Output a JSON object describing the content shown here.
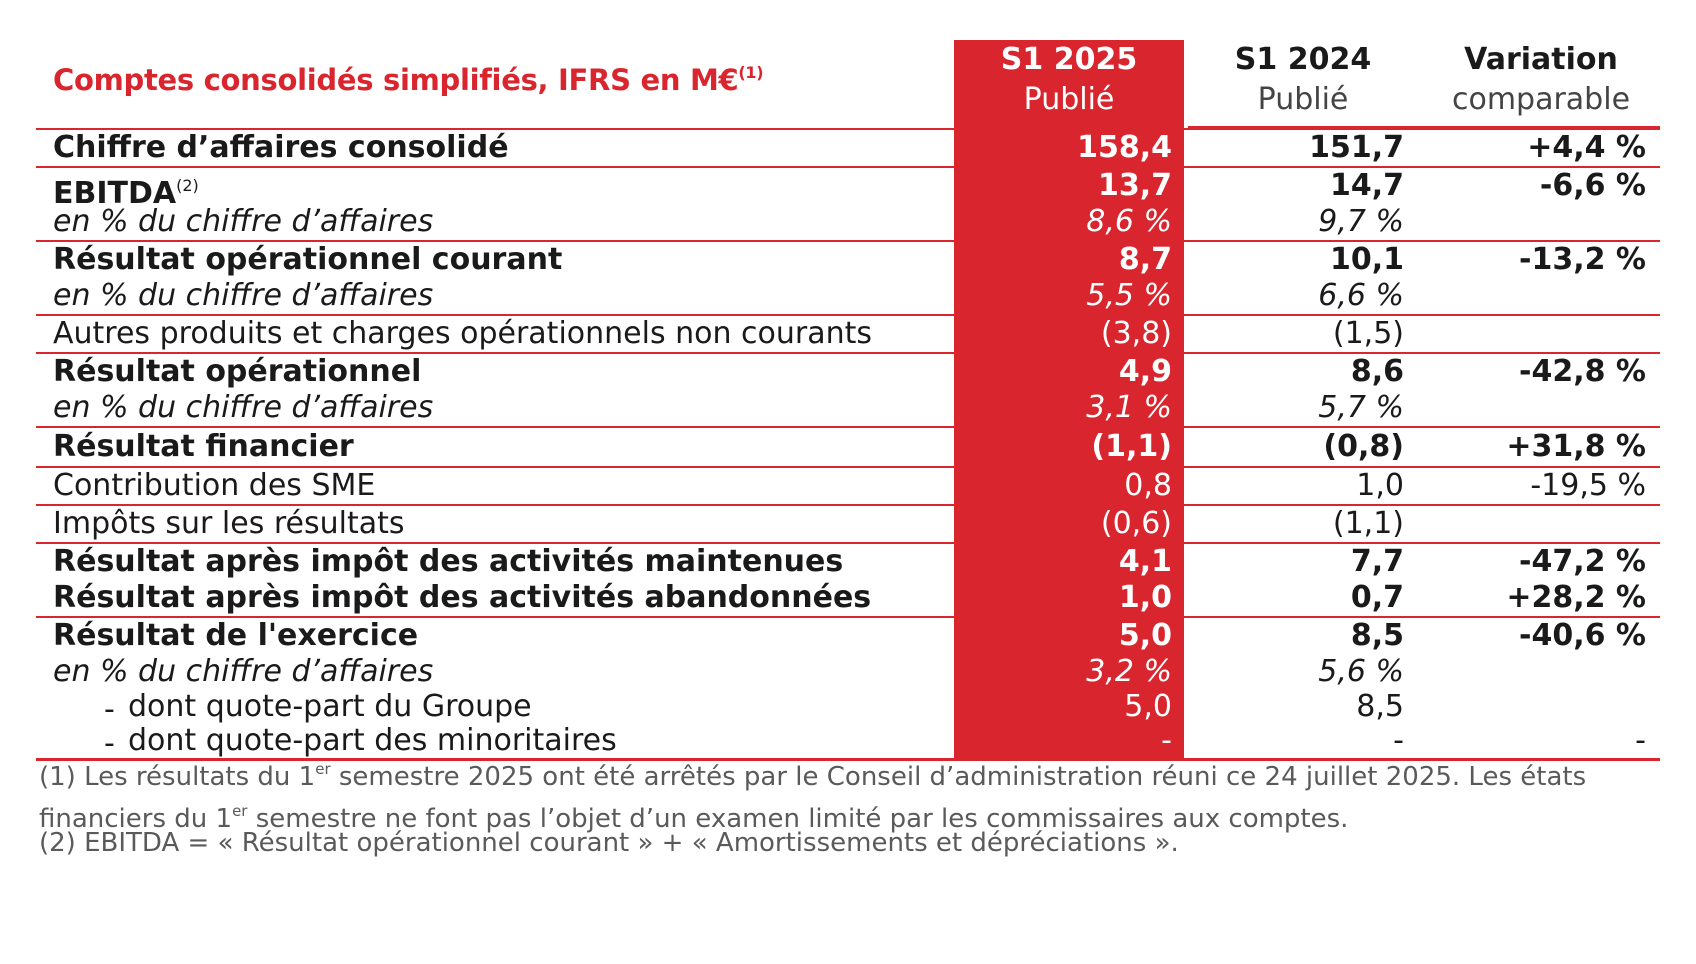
{
  "header": {
    "title": "Comptes consolidés simplifiés, IFRS en M€",
    "title_note": "(1)",
    "col1_line1": "S1 2025",
    "col1_line2": "Publié",
    "col2_line1": "S1 2024",
    "col2_line2": "Publié",
    "col3_line1": "Variation",
    "col3_line2": "comparable"
  },
  "rows": [
    {
      "label": "Chiffre d’affaires consolidé",
      "v1": "158,4",
      "v2": "151,7",
      "v3": "+4,4 %"
    },
    {
      "label": "EBITDA",
      "note": "(2)",
      "v1": "13,7",
      "v2": "14,7",
      "v3": "-6,6 %"
    },
    {
      "label": "en % du chiffre d’affaires",
      "v1": "8,6 %",
      "v2": "9,7 %",
      "v3": ""
    },
    {
      "label": "Résultat opérationnel courant",
      "v1": "8,7",
      "v2": "10,1",
      "v3": "-13,2 %"
    },
    {
      "label": "en % du chiffre d’affaires",
      "v1": "5,5 %",
      "v2": "6,6 %",
      "v3": ""
    },
    {
      "label": "Autres produits et charges opérationnels non courants",
      "v1": "(3,8)",
      "v2": "(1,5)",
      "v3": ""
    },
    {
      "label": "Résultat opérationnel",
      "v1": "4,9",
      "v2": "8,6",
      "v3": "-42,8 %"
    },
    {
      "label": "en % du chiffre d’affaires",
      "v1": "3,1 %",
      "v2": "5,7 %",
      "v3": ""
    },
    {
      "label": "Résultat financier",
      "v1": "(1,1)",
      "v2": "(0,8)",
      "v3": "+31,8 %"
    },
    {
      "label": "Contribution des SME",
      "v1": "0,8",
      "v2": "1,0",
      "v3": "-19,5 %"
    },
    {
      "label": "Impôts sur les résultats",
      "v1": "(0,6)",
      "v2": "(1,1)",
      "v3": ""
    },
    {
      "label": "Résultat après impôt des activités maintenues",
      "v1": "4,1",
      "v2": "7,7",
      "v3": "-47,2 %"
    },
    {
      "label": "Résultat après impôt des activités abandonnées",
      "v1": "1,0",
      "v2": "0,7",
      "v3": "+28,2 %"
    },
    {
      "label": "Résultat de l'exercice",
      "v1": "5,0",
      "v2": "8,5",
      "v3": "-40,6 %"
    },
    {
      "label": "en % du chiffre d’affaires",
      "v1": "3,2 %",
      "v2": "5,6 %",
      "v3": ""
    },
    {
      "label": "dont quote-part du Groupe",
      "dash": "-",
      "v1": "5,0",
      "v2": "8,5",
      "v3": ""
    },
    {
      "label": "dont quote-part des minoritaires",
      "dash": "-",
      "v1": "-",
      "v2": "-",
      "v3": "-"
    }
  ],
  "footnotes": {
    "note1_a": "(1) Les résultats du 1",
    "note1_sup1": "er",
    "note1_b": " semestre 2025 ont été arrêtés par le Conseil d’administration réuni ce 24 juillet 2025. Les états financiers du 1",
    "note1_sup2": "er",
    "note1_c": " semestre ne font pas l’objet d’un examen limité par les commissaires aux comptes.",
    "note2": "(2) EBITDA = « Résultat opérationnel courant » + « Amortissements et dépréciations »."
  },
  "colors": {
    "accent": "#d9262e"
  }
}
